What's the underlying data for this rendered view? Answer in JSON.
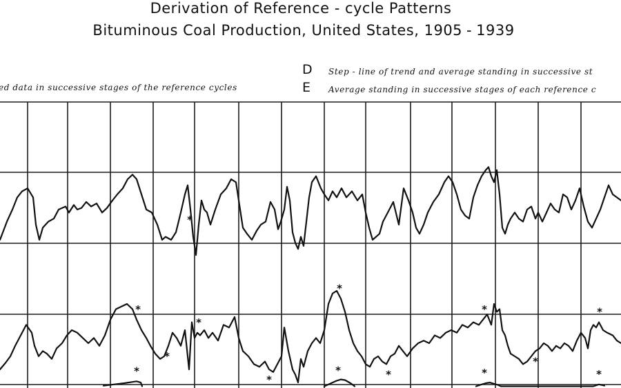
{
  "chart_data": {
    "type": "line",
    "title": "Derivation of Reference-cycle Patterns",
    "subtitle": "Bituminous Coal Production, United States, 1905 - 1939",
    "title_parts": {
      "title": "Derivation of Reference - cycle Patterns",
      "subtitle_label": "Bituminous Coal Production, United States, ",
      "year_start": "1905",
      "year_dash": "-",
      "year_end": "1939"
    },
    "xlim": [
      0,
      900
    ],
    "ylim": [
      0,
      100
    ],
    "grid": true,
    "legend_position": "top",
    "legend": {
      "left_text": "ed data in successive stages of the reference cycles",
      "items": [
        {
          "letter": "D",
          "text": "Step - line of trend and average standing in successive st"
        },
        {
          "letter": "E",
          "text": "Average standing in successive stages of each reference c"
        }
      ]
    },
    "series": [
      {
        "x": [
          0,
          10,
          18,
          25,
          32,
          40,
          48,
          52,
          57,
          62,
          70,
          78,
          85,
          95,
          100,
          107,
          112,
          118,
          125,
          132,
          140,
          148,
          155,
          163,
          170,
          178,
          185,
          192,
          198,
          205,
          212,
          220,
          228,
          235,
          240,
          248,
          255,
          262,
          268,
          272,
          276,
          280,
          284,
          288,
          292,
          296,
          300,
          305,
          312,
          320,
          328,
          335,
          342,
          348,
          352,
          358,
          365,
          372,
          378,
          385,
          392,
          398,
          403,
          407,
          412,
          416,
          420,
          424,
          428,
          432,
          436,
          440,
          444,
          448,
          452,
          458,
          465,
          470,
          476,
          482,
          488,
          495,
          502,
          510,
          518,
          525,
          530,
          535,
          540,
          545,
          550,
          555,
          562,
          570,
          578,
          585,
          592,
          598,
          603,
          608,
          614,
          620,
          628,
          636,
          644,
          650,
          656,
          662,
          668,
          674,
          680,
          686,
          692,
          698,
          704,
          708,
          712,
          716,
          720,
          724,
          728,
          732,
          736,
          740,
          746,
          752,
          758,
          764,
          770,
          776,
          780,
          786,
          792,
          798,
          804,
          810,
          816,
          822,
          828,
          834,
          840,
          846,
          852,
          858,
          864,
          870,
          876,
          882,
          888,
          894,
          900
        ],
        "y": [
          10,
          22,
          30,
          38,
          42,
          44,
          38,
          20,
          10,
          18,
          22,
          24,
          30,
          32,
          28,
          33,
          30,
          31,
          35,
          32,
          34,
          28,
          31,
          36,
          40,
          44,
          50,
          53,
          50,
          40,
          30,
          28,
          20,
          10,
          12,
          10,
          15,
          28,
          40,
          46,
          30,
          12,
          0,
          20,
          36,
          30,
          28,
          20,
          30,
          40,
          44,
          50,
          48,
          30,
          18,
          14,
          10,
          16,
          20,
          22,
          35,
          30,
          17,
          22,
          30,
          45,
          36,
          15,
          8,
          4,
          12,
          6,
          22,
          38,
          48,
          52,
          44,
          40,
          36,
          42,
          38,
          44,
          38,
          42,
          36,
          40,
          28,
          18,
          10,
          12,
          14,
          22,
          28,
          35,
          20,
          44,
          36,
          28,
          18,
          14,
          20,
          28,
          35,
          40,
          48,
          52,
          48,
          40,
          30,
          26,
          24,
          38,
          46,
          52,
          56,
          58,
          52,
          48,
          56,
          40,
          18,
          14,
          20,
          24,
          28,
          24,
          22,
          30,
          32,
          24,
          28,
          22,
          28,
          34,
          30,
          28,
          40,
          38,
          30,
          36,
          44,
          32,
          22,
          18,
          24,
          30,
          38,
          46,
          40,
          38,
          36
        ],
        "turning_points": [
          {
            "x": 275,
            "label": "*",
            "type": "trough"
          }
        ]
      },
      {
        "x": [
          0,
          8,
          15,
          22,
          30,
          38,
          46,
          50,
          56,
          62,
          68,
          75,
          82,
          90,
          97,
          104,
          112,
          120,
          128,
          136,
          144,
          152,
          160,
          168,
          176,
          184,
          192,
          198,
          205,
          212,
          218,
          225,
          232,
          238,
          244,
          250,
          256,
          262,
          268,
          274,
          278,
          282,
          286,
          290,
          296,
          302,
          308,
          316,
          324,
          332,
          340,
          346,
          352,
          360,
          368,
          376,
          384,
          390,
          396,
          402,
          408,
          412,
          418,
          424,
          428,
          432,
          436,
          440,
          446,
          452,
          458,
          464,
          470,
          476,
          482,
          488,
          494,
          500,
          506,
          512,
          518,
          524,
          530,
          536,
          542,
          548,
          554,
          560,
          566,
          572,
          578,
          584,
          590,
          598,
          606,
          614,
          622,
          630,
          638,
          646,
          654,
          662,
          670,
          678,
          686,
          694,
          700,
          706,
          712,
          716,
          720,
          724,
          728,
          732,
          736,
          740,
          746,
          752,
          758,
          764,
          770,
          776,
          782,
          788,
          794,
          800,
          806,
          812,
          818,
          824,
          830,
          836,
          842,
          848,
          852,
          856,
          860,
          864,
          868,
          874,
          880,
          888,
          894,
          900
        ],
        "y": [
          10,
          15,
          20,
          28,
          36,
          44,
          38,
          28,
          20,
          24,
          22,
          18,
          26,
          30,
          36,
          40,
          38,
          34,
          30,
          34,
          28,
          36,
          48,
          56,
          58,
          60,
          56,
          48,
          40,
          34,
          28,
          22,
          18,
          20,
          28,
          38,
          34,
          28,
          40,
          10,
          46,
          34,
          38,
          36,
          40,
          34,
          38,
          32,
          44,
          42,
          50,
          34,
          24,
          20,
          14,
          12,
          16,
          10,
          8,
          14,
          20,
          42,
          24,
          10,
          6,
          0,
          18,
          12,
          24,
          30,
          34,
          30,
          40,
          60,
          68,
          70,
          64,
          54,
          40,
          30,
          24,
          20,
          14,
          12,
          18,
          20,
          16,
          14,
          20,
          22,
          28,
          24,
          20,
          26,
          30,
          32,
          30,
          36,
          34,
          38,
          40,
          38,
          44,
          42,
          46,
          44,
          48,
          52,
          44,
          60,
          54,
          56,
          40,
          36,
          28,
          22,
          20,
          18,
          14,
          16,
          20,
          24,
          26,
          30,
          28,
          24,
          28,
          26,
          30,
          28,
          24,
          32,
          38,
          34,
          26,
          40,
          44,
          42,
          46,
          40,
          38,
          36,
          32,
          30
        ],
        "turning_points": [
          {
            "x": 200,
            "label": "*",
            "type": "peak"
          },
          {
            "x": 242,
            "label": "*",
            "type": "trough"
          },
          {
            "x": 288,
            "label": "*",
            "type": "peak"
          },
          {
            "x": 390,
            "label": "*",
            "type": "trough"
          },
          {
            "x": 492,
            "label": "*",
            "type": "peak"
          },
          {
            "x": 563,
            "label": "*",
            "type": "trough"
          },
          {
            "x": 702,
            "label": "*",
            "type": "peak"
          },
          {
            "x": 776,
            "label": "*",
            "type": "trough"
          },
          {
            "x": 869,
            "label": "*",
            "type": "peak"
          }
        ]
      },
      {
        "x": [
          150,
          165,
          180,
          192,
          198,
          204,
          206,
          470,
          480,
          488,
          494,
          500,
          508,
          514,
          690,
          698,
          704,
          710,
          716,
          722,
          726,
          860,
          868,
          876
        ],
        "y": [
          12,
          16,
          20,
          24,
          26,
          22,
          10,
          10,
          20,
          28,
          32,
          30,
          20,
          10,
          10,
          16,
          20,
          22,
          18,
          14,
          10,
          10,
          16,
          12
        ],
        "turning_points": [
          {
            "x": 198,
            "label": "*",
            "type": "peak"
          },
          {
            "x": 490,
            "label": "*",
            "type": "peak"
          },
          {
            "x": 702,
            "label": "*",
            "type": "peak"
          },
          {
            "x": 868,
            "label": "*",
            "type": "peak"
          }
        ]
      }
    ],
    "grid_x": [
      40,
      98,
      160,
      222,
      282,
      346,
      408,
      470,
      530,
      595,
      655,
      718,
      780,
      842
    ],
    "grid_y": [
      0,
      100
    ]
  }
}
